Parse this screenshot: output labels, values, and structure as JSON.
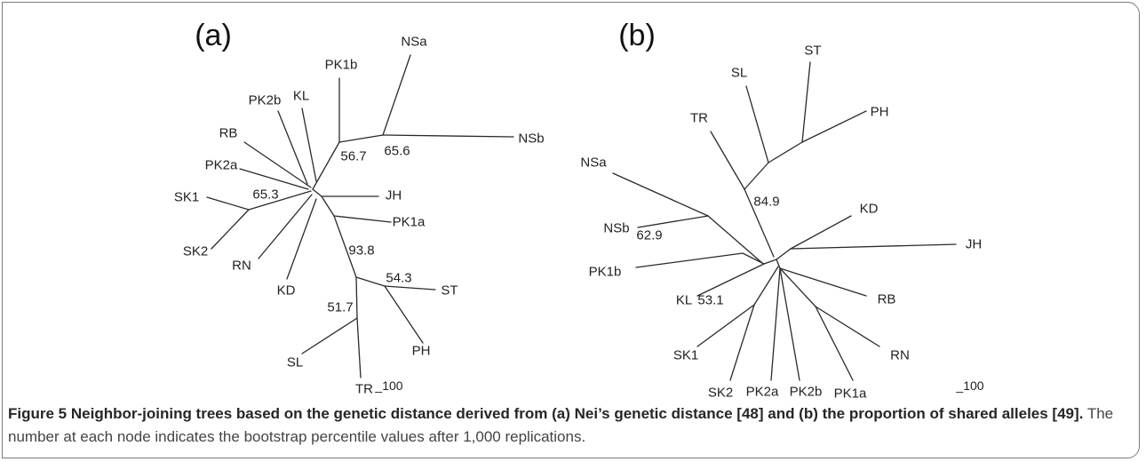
{
  "figure": {
    "panels": [
      {
        "label": "(a)",
        "leaves": [
          "PK1b",
          "NSa",
          "NSb",
          "KL",
          "PK2b",
          "RB",
          "PK2a",
          "JH",
          "SK1",
          "SK2",
          "PK1a",
          "RN",
          "KD",
          "ST",
          "PH",
          "SL",
          "TR"
        ],
        "bootstrap": [
          "56.7",
          "65.6",
          "65.3",
          "93.8",
          "54.3",
          "51.7"
        ],
        "scale_bar": "_100"
      },
      {
        "label": "(b)",
        "leaves": [
          "ST",
          "SL",
          "PH",
          "TR",
          "NSa",
          "NSb",
          "KD",
          "JH",
          "PK1b",
          "KL",
          "RB",
          "RN",
          "SK1",
          "SK2",
          "PK2a",
          "PK2b",
          "PK1a"
        ],
        "bootstrap": [
          "84.9",
          "62.9",
          "53.1"
        ],
        "scale_bar": "_100"
      }
    ]
  },
  "caption": {
    "label": "Figure 5",
    "title": "Neighbor-joining trees based on the genetic distance derived from (a) Nei’s genetic distance [48] and (b) the proportion of shared alleles [49].",
    "body": "The number at each node indicates the bootstrap percentile values after 1,000 replications."
  }
}
